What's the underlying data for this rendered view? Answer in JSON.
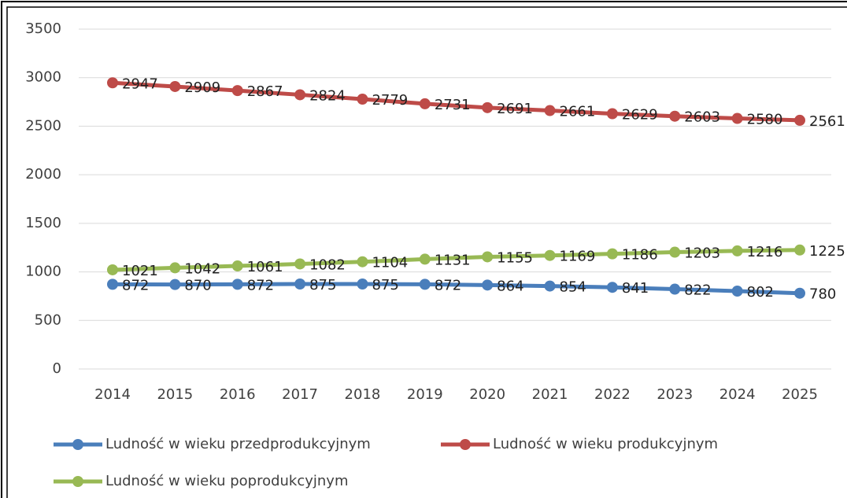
{
  "chart_data": {
    "type": "line",
    "categories": [
      "2014",
      "2015",
      "2016",
      "2017",
      "2018",
      "2019",
      "2020",
      "2021",
      "2022",
      "2023",
      "2024",
      "2025"
    ],
    "series": [
      {
        "name": "Ludność w wieku przedprodukcyjnym",
        "color": "#4a7ebb",
        "values": [
          872,
          870,
          872,
          875,
          875,
          872,
          864,
          854,
          841,
          822,
          802,
          780
        ]
      },
      {
        "name": "Ludność w wieku produkcyjnym",
        "color": "#be4b48",
        "values": [
          2947,
          2909,
          2867,
          2824,
          2779,
          2731,
          2691,
          2661,
          2629,
          2603,
          2580,
          2561
        ]
      },
      {
        "name": "Ludność w wieku poprodukcyjnym",
        "color": "#98b954",
        "values": [
          1021,
          1042,
          1061,
          1082,
          1104,
          1131,
          1155,
          1169,
          1186,
          1203,
          1216,
          1225
        ]
      }
    ],
    "ylim": [
      0,
      3500
    ],
    "yticks": [
      0,
      500,
      1000,
      1500,
      2000,
      2500,
      3000,
      3500
    ],
    "grid": true,
    "legend": "bottom"
  }
}
